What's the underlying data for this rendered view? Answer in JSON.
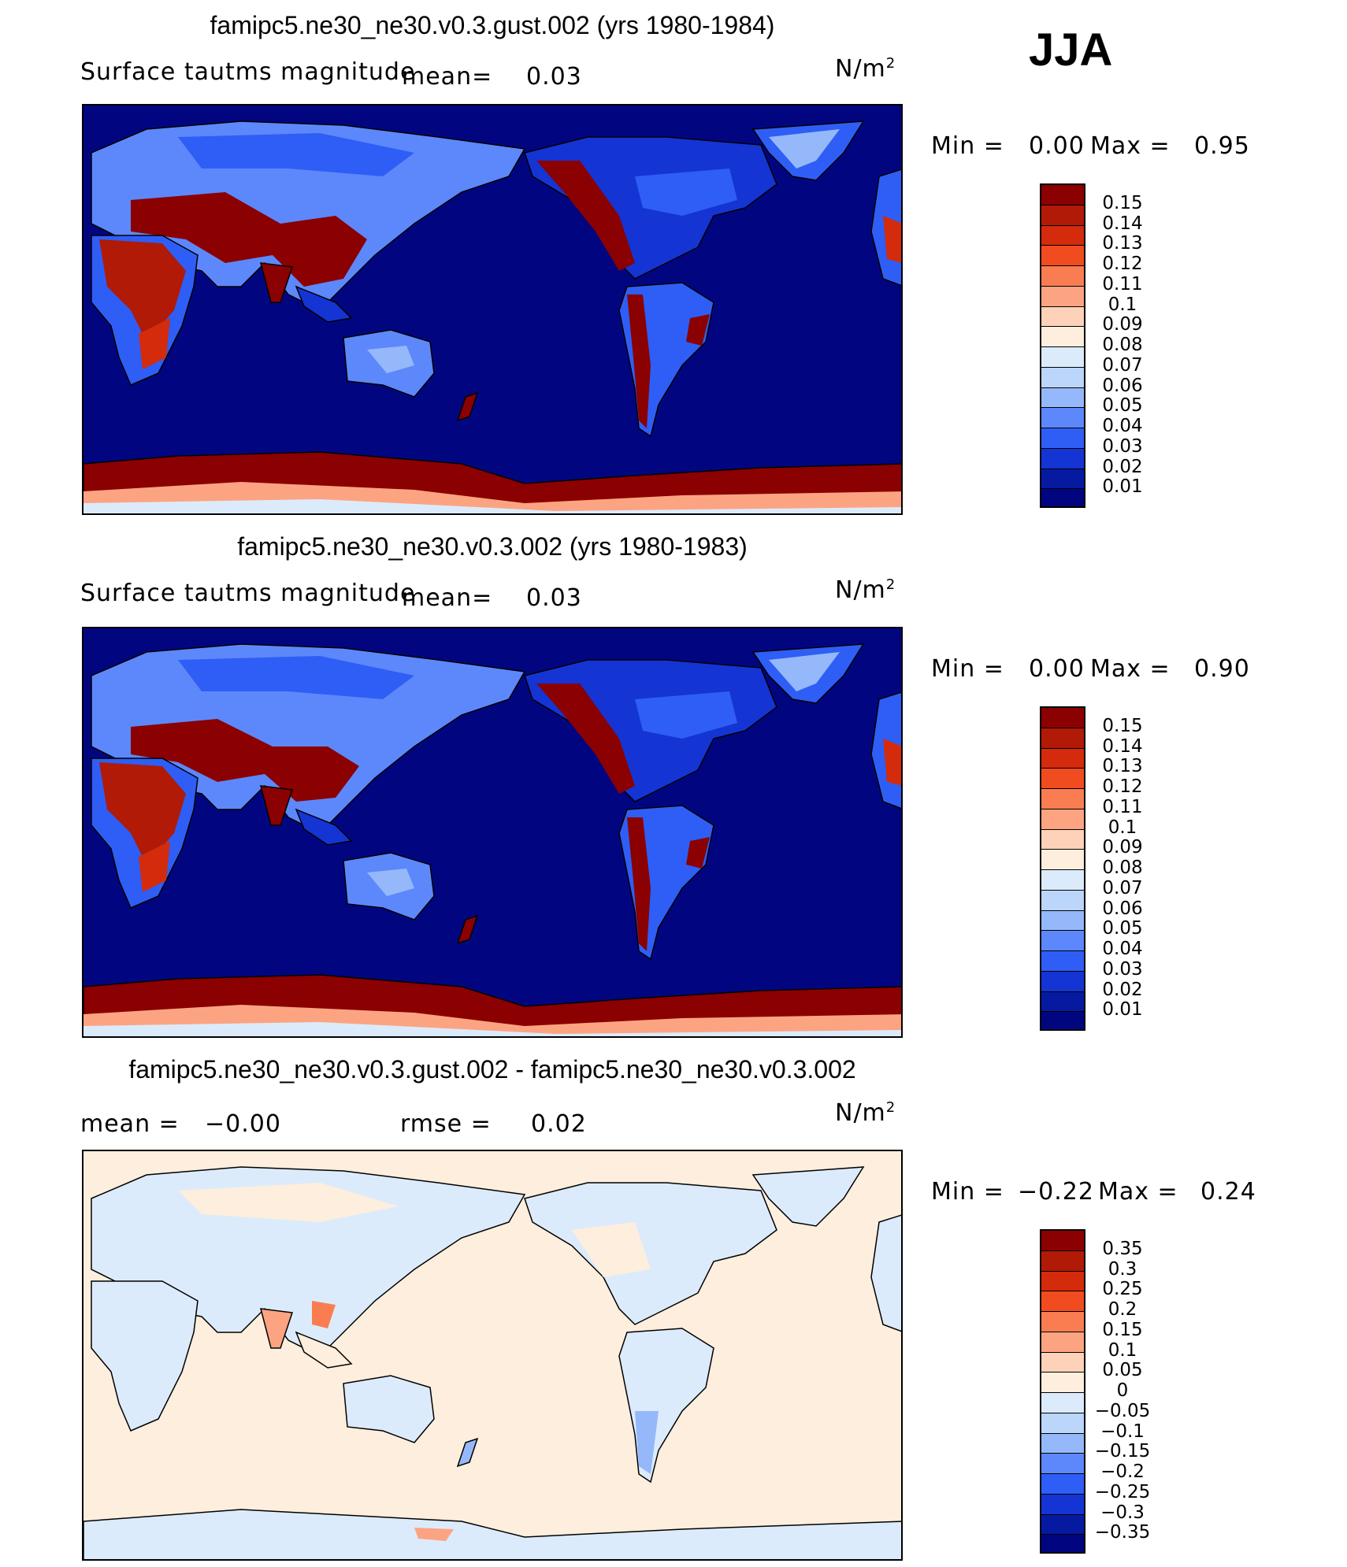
{
  "season_label": "JJA",
  "chart_data": [
    {
      "type": "heatmap",
      "title": "famipc5.ne30_ne30.v0.3.gust.002 (yrs 1980-1984)",
      "variable_label": "Surface tautms magnitude",
      "mean_label": "mean=",
      "mean_value": "0.03",
      "units": "N/m",
      "units_exp": "2",
      "min_label": "Min =",
      "min_value": "0.00",
      "max_label": "Max =",
      "max_value": "0.95",
      "levels": [
        "0.15",
        "0.14",
        "0.13",
        "0.12",
        "0.11",
        "0.1",
        "0.09",
        "0.08",
        "0.07",
        "0.06",
        "0.05",
        "0.04",
        "0.03",
        "0.02",
        "0.01"
      ],
      "level_colors": [
        "#8b0000",
        "#b01a06",
        "#d32b0c",
        "#f04c1f",
        "#fa7d52",
        "#fca482",
        "#fdd2b8",
        "#fdeedd",
        "#dcebfb",
        "#bcd5fb",
        "#95b8fa",
        "#5d88fb",
        "#2e5ef5",
        "#1434d3",
        "#061aa1",
        "#010680"
      ]
    },
    {
      "type": "heatmap",
      "title": "famipc5.ne30_ne30.v0.3.002 (yrs 1980-1983)",
      "variable_label": "Surface tautms magnitude",
      "mean_label": "mean=",
      "mean_value": "0.03",
      "units": "N/m",
      "units_exp": "2",
      "min_label": "Min =",
      "min_value": "0.00",
      "max_label": "Max =",
      "max_value": "0.90",
      "levels": [
        "0.15",
        "0.14",
        "0.13",
        "0.12",
        "0.11",
        "0.1",
        "0.09",
        "0.08",
        "0.07",
        "0.06",
        "0.05",
        "0.04",
        "0.03",
        "0.02",
        "0.01"
      ],
      "level_colors": [
        "#8b0000",
        "#b01a06",
        "#d32b0c",
        "#f04c1f",
        "#fa7d52",
        "#fca482",
        "#fdd2b8",
        "#fdeedd",
        "#dcebfb",
        "#bcd5fb",
        "#95b8fa",
        "#5d88fb",
        "#2e5ef5",
        "#1434d3",
        "#061aa1",
        "#010680"
      ]
    },
    {
      "type": "heatmap",
      "title": "famipc5.ne30_ne30.v0.3.gust.002 - famipc5.ne30_ne30.v0.3.002",
      "mean_label": "mean =",
      "mean_value": "−0.00",
      "rmse_label": "rmse =",
      "rmse_value": "0.02",
      "units": "N/m",
      "units_exp": "2",
      "min_label": "Min =",
      "min_value": "−0.22",
      "max_label": "Max =",
      "max_value": "0.24",
      "levels": [
        "0.35",
        "0.3",
        "0.25",
        "0.2",
        "0.15",
        "0.1",
        "0.05",
        "0",
        "−0.05",
        "−0.1",
        "−0.15",
        "−0.2",
        "−0.25",
        "−0.3",
        "−0.35"
      ],
      "level_colors": [
        "#8b0000",
        "#b01a06",
        "#d32b0c",
        "#f04c1f",
        "#fa7d52",
        "#fca482",
        "#fdd2b8",
        "#fdeedd",
        "#dcebfb",
        "#bcd5fb",
        "#95b8fa",
        "#5d88fb",
        "#2e5ef5",
        "#1434d3",
        "#061aa1",
        "#010680"
      ]
    }
  ]
}
